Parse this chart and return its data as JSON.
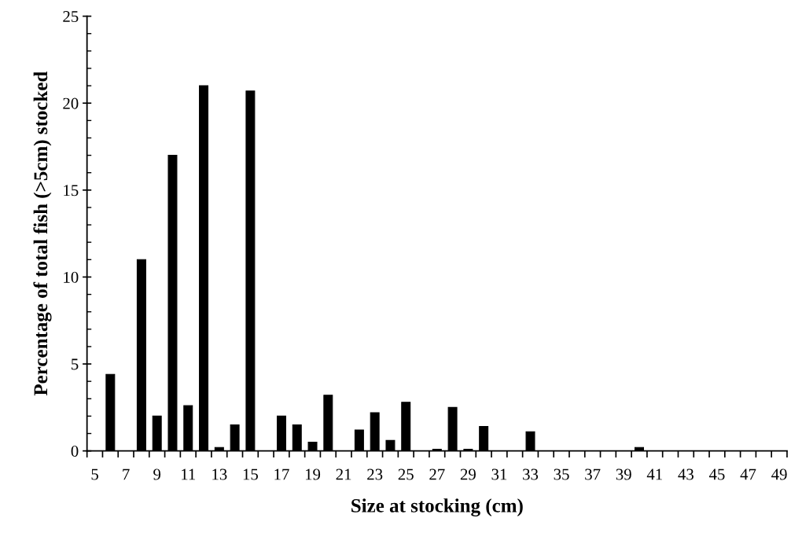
{
  "chart_data": {
    "type": "bar",
    "xlabel": "Size at stocking (cm)",
    "ylabel": "Percentage of total fish (>5cm) stocked",
    "categories": [
      "5",
      null,
      "7",
      null,
      "9",
      null,
      "11",
      null,
      "13",
      null,
      "15",
      null,
      "17",
      null,
      "19",
      null,
      "21",
      null,
      "23",
      null,
      "25",
      null,
      "27",
      null,
      "29",
      null,
      "31",
      null,
      "33",
      null,
      "35",
      null,
      "37",
      null,
      "39",
      null,
      "41",
      null,
      "43",
      null,
      "45",
      null,
      "47",
      null,
      "49"
    ],
    "values": [
      0,
      4.4,
      0,
      11,
      2.0,
      17,
      2.6,
      21,
      0.2,
      1.5,
      20.7,
      0,
      2.0,
      1.5,
      0.5,
      3.2,
      0,
      1.2,
      2.2,
      0.6,
      2.8,
      0,
      0.1,
      2.5,
      0.1,
      1.4,
      0,
      null,
      1.1,
      0,
      0,
      0,
      0,
      0,
      0,
      0.2,
      0,
      0,
      0,
      0,
      0,
      0,
      0,
      0,
      0
    ],
    "color": "#000000",
    "ylim": [
      0,
      25
    ],
    "yticks": [
      0,
      5,
      10,
      15,
      20,
      25
    ],
    "grid": false,
    "legend": false
  }
}
